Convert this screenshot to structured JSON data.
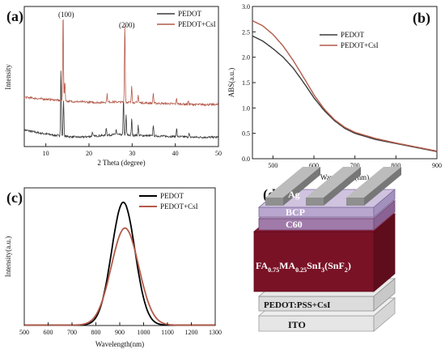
{
  "panels": {
    "a": "(a)",
    "b": "(b)",
    "c": "(c)",
    "d": "(d)"
  },
  "colors": {
    "pedot": "#3a3a3a",
    "csi": "#b45a4a",
    "black": "#000000"
  },
  "chart_data": [
    {
      "id": "a",
      "type": "line",
      "title": "",
      "xlabel": "2 Theta (degree)",
      "ylabel": "Intensity",
      "xlim": [
        5,
        50
      ],
      "xticks": [
        10,
        20,
        30,
        40,
        50
      ],
      "grid": false,
      "legend": "top-right",
      "annotations": [
        {
          "text": "(100)",
          "x": 14.0
        },
        {
          "text": "(200)",
          "x": 28.3
        }
      ],
      "series": [
        {
          "name": "PEDOT",
          "color": "#3a3a3a",
          "baseline": 0.12,
          "noise": 0.015,
          "x": [
            5,
            8,
            12,
            15,
            18,
            22,
            26,
            30,
            35,
            40,
            45,
            50
          ],
          "y": [
            0.25,
            0.21,
            0.17,
            0.15,
            0.14,
            0.16,
            0.18,
            0.17,
            0.16,
            0.15,
            0.14,
            0.14
          ],
          "peaks": [
            [
              13.5,
              1.0
            ],
            [
              14.1,
              0.55
            ],
            [
              20.8,
              0.07
            ],
            [
              24.0,
              0.12
            ],
            [
              26.3,
              0.08
            ],
            [
              28.0,
              0.55
            ],
            [
              28.6,
              0.3
            ],
            [
              29.9,
              0.25
            ],
            [
              31.4,
              0.15
            ],
            [
              34.9,
              0.17
            ],
            [
              40.3,
              0.13
            ],
            [
              43.2,
              0.05
            ]
          ]
        },
        {
          "name": "PEDOT+CsI",
          "color": "#b45a4a",
          "baseline": 0.62,
          "noise": 0.015,
          "x": [
            5,
            8,
            12,
            15,
            18,
            22,
            26,
            30,
            35,
            40,
            45,
            50
          ],
          "y": [
            0.74,
            0.72,
            0.7,
            0.68,
            0.67,
            0.66,
            0.67,
            0.66,
            0.65,
            0.64,
            0.63,
            0.63
          ],
          "peaks": [
            [
              14.0,
              1.35
            ],
            [
              14.4,
              0.3
            ],
            [
              24.2,
              0.12
            ],
            [
              28.3,
              1.2
            ],
            [
              29.9,
              0.26
            ],
            [
              31.4,
              0.12
            ],
            [
              34.9,
              0.15
            ],
            [
              40.3,
              0.09
            ],
            [
              43.0,
              0.05
            ]
          ]
        }
      ]
    },
    {
      "id": "b",
      "type": "line",
      "title": "",
      "xlabel": "Wavelength(nm)",
      "ylabel": "ABS(a.u.)",
      "xlim": [
        450,
        900
      ],
      "ylim": [
        0,
        3.0
      ],
      "xticks": [
        500,
        600,
        700,
        800,
        900
      ],
      "yticks": [
        0.0,
        0.5,
        1.0,
        1.5,
        2.0,
        2.5,
        3.0
      ],
      "grid": false,
      "legend": "top-right",
      "series": [
        {
          "name": "PEDOT",
          "color": "#3a3a3a",
          "x": [
            450,
            475,
            500,
            525,
            550,
            575,
            600,
            625,
            650,
            675,
            700,
            750,
            800,
            850,
            900
          ],
          "y": [
            2.42,
            2.32,
            2.17,
            2.0,
            1.78,
            1.5,
            1.2,
            0.95,
            0.75,
            0.6,
            0.5,
            0.38,
            0.3,
            0.22,
            0.14
          ]
        },
        {
          "name": "PEDOT+CsI",
          "color": "#b45a4a",
          "x": [
            450,
            475,
            500,
            525,
            550,
            575,
            600,
            625,
            650,
            675,
            700,
            750,
            800,
            850,
            900
          ],
          "y": [
            2.72,
            2.62,
            2.45,
            2.22,
            1.93,
            1.6,
            1.26,
            0.98,
            0.77,
            0.62,
            0.52,
            0.4,
            0.31,
            0.23,
            0.15
          ]
        }
      ]
    },
    {
      "id": "c",
      "type": "line",
      "title": "",
      "xlabel": "Wavelength(nm)",
      "ylabel": "Intensity(a.u.)",
      "xlim": [
        500,
        1300
      ],
      "xticks": [
        500,
        600,
        700,
        800,
        900,
        1000,
        1100,
        1200,
        1300
      ],
      "grid": false,
      "legend": "top-right",
      "series": [
        {
          "name": "PEDOT",
          "color": "#000000",
          "center": 915,
          "height": 1.0,
          "fwhm": 115
        },
        {
          "name": "PEDOT+CsI",
          "color": "#b45a4a",
          "center": 922,
          "height": 0.79,
          "fwhm": 135
        }
      ]
    }
  ],
  "device": {
    "layers": [
      "Ag",
      "BCP",
      "C60",
      "FA0.75MA0.25SnI3(SnF2)",
      "PEDOT:PSS+CsI",
      "ITO"
    ],
    "perovskite": {
      "a": "FA",
      "a_sub": "0.75",
      "b": "MA",
      "b_sub": "0.25",
      "c": "SnI",
      "c_sub": "3",
      "d": "(SnF",
      "d_sub": "2",
      "e": ")"
    }
  }
}
